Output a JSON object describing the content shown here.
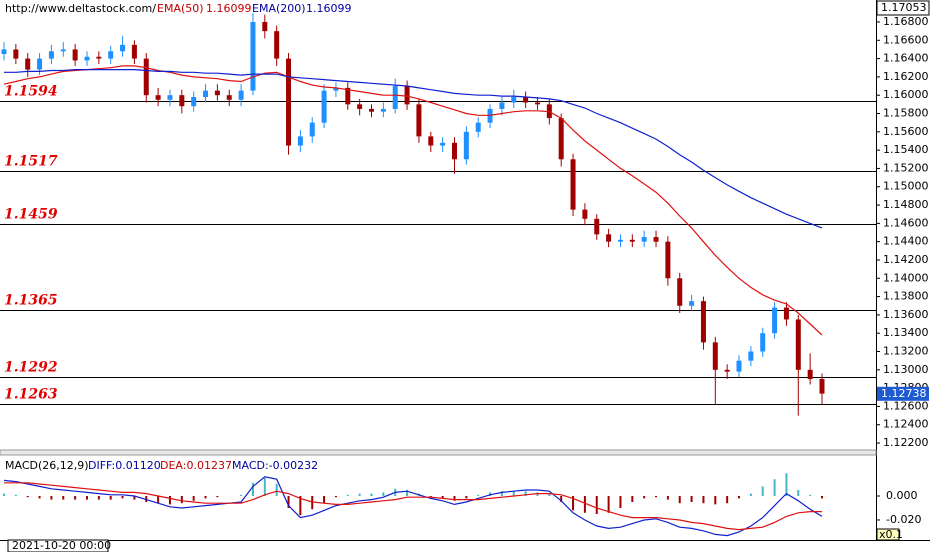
{
  "chart_data": {
    "type": "candlestick",
    "source": "http://www.deltastock.com/",
    "date_label": "2021-10-20 00:00",
    "high_price": 1.17053,
    "last_price": 1.12738,
    "ylim": [
      1.12124,
      1.1704
    ],
    "yticks": [
      {
        "value": 1.168,
        "label": "1.16800"
      },
      {
        "value": 1.166,
        "label": "1.16600"
      },
      {
        "value": 1.164,
        "label": "1.16400"
      },
      {
        "value": 1.162,
        "label": "1.16200"
      },
      {
        "value": 1.16,
        "label": "1.16000"
      },
      {
        "value": 1.158,
        "label": "1.15800"
      },
      {
        "value": 1.156,
        "label": "1.15600"
      },
      {
        "value": 1.154,
        "label": "1.15400"
      },
      {
        "value": 1.152,
        "label": "1.15200"
      },
      {
        "value": 1.15,
        "label": "1.15000"
      },
      {
        "value": 1.148,
        "label": "1.14800"
      },
      {
        "value": 1.146,
        "label": "1.14600"
      },
      {
        "value": 1.144,
        "label": "1.14400"
      },
      {
        "value": 1.142,
        "label": "1.14200"
      },
      {
        "value": 1.14,
        "label": "1.14000"
      },
      {
        "value": 1.138,
        "label": "1.13800"
      },
      {
        "value": 1.136,
        "label": "1.13600"
      },
      {
        "value": 1.134,
        "label": "1.13400"
      },
      {
        "value": 1.132,
        "label": "1.13200"
      },
      {
        "value": 1.13,
        "label": "1.13000"
      },
      {
        "value": 1.128,
        "label": "1.12800"
      },
      {
        "value": 1.126,
        "label": "1.12600"
      },
      {
        "value": 1.124,
        "label": "1.12400"
      },
      {
        "value": 1.122,
        "label": "1.12200"
      }
    ],
    "levels": [
      1.1594,
      1.1517,
      1.1459,
      1.1365,
      1.1292,
      1.1263
    ],
    "up_color": "#1e90ff",
    "down_color": "#a00000",
    "candles": [
      [
        1.1645,
        1.1658,
        1.1638,
        1.165
      ],
      [
        1.165,
        1.1656,
        1.1634,
        1.164
      ],
      [
        1.164,
        1.1646,
        1.162,
        1.1628
      ],
      [
        1.1628,
        1.1646,
        1.1622,
        1.164
      ],
      [
        1.164,
        1.1655,
        1.1634,
        1.1648
      ],
      [
        1.1648,
        1.1658,
        1.1642,
        1.165
      ],
      [
        1.165,
        1.1656,
        1.1632,
        1.1638
      ],
      [
        1.1638,
        1.1648,
        1.1632,
        1.1642
      ],
      [
        1.1642,
        1.1648,
        1.1634,
        1.164
      ],
      [
        1.164,
        1.1654,
        1.1634,
        1.1648
      ],
      [
        1.1648,
        1.1665,
        1.1642,
        1.1655
      ],
      [
        1.1655,
        1.166,
        1.1634,
        1.164
      ],
      [
        1.164,
        1.1646,
        1.1592,
        1.16
      ],
      [
        1.16,
        1.1608,
        1.1588,
        1.1595
      ],
      [
        1.1595,
        1.1606,
        1.1588,
        1.16
      ],
      [
        1.16,
        1.1606,
        1.158,
        1.1588
      ],
      [
        1.1588,
        1.1604,
        1.1582,
        1.1598
      ],
      [
        1.1598,
        1.1612,
        1.1592,
        1.1605
      ],
      [
        1.1605,
        1.1612,
        1.1594,
        1.16
      ],
      [
        1.16,
        1.1606,
        1.1588,
        1.1595
      ],
      [
        1.1595,
        1.1612,
        1.1588,
        1.1605
      ],
      [
        1.1605,
        1.169,
        1.16,
        1.168
      ],
      [
        1.168,
        1.1688,
        1.1662,
        1.167
      ],
      [
        1.167,
        1.1676,
        1.1632,
        1.164
      ],
      [
        1.164,
        1.1646,
        1.1535,
        1.1545
      ],
      [
        1.1545,
        1.1562,
        1.1538,
        1.1555
      ],
      [
        1.1555,
        1.1576,
        1.1548,
        1.157
      ],
      [
        1.157,
        1.1612,
        1.1564,
        1.1605
      ],
      [
        1.1605,
        1.1614,
        1.1598,
        1.1608
      ],
      [
        1.1608,
        1.1614,
        1.1584,
        1.159
      ],
      [
        1.159,
        1.1596,
        1.1578,
        1.1585
      ],
      [
        1.1585,
        1.159,
        1.1576,
        1.1582
      ],
      [
        1.1582,
        1.1592,
        1.1576,
        1.1585
      ],
      [
        1.1585,
        1.1618,
        1.158,
        1.161
      ],
      [
        1.161,
        1.1616,
        1.1584,
        1.159
      ],
      [
        1.159,
        1.1596,
        1.1548,
        1.1555
      ],
      [
        1.1555,
        1.156,
        1.1538,
        1.1545
      ],
      [
        1.1545,
        1.1554,
        1.1538,
        1.1548
      ],
      [
        1.1548,
        1.1554,
        1.1514,
        1.153
      ],
      [
        1.153,
        1.1566,
        1.1524,
        1.156
      ],
      [
        1.156,
        1.1576,
        1.1554,
        1.157
      ],
      [
        1.157,
        1.159,
        1.1564,
        1.1585
      ],
      [
        1.1585,
        1.1598,
        1.1578,
        1.1592
      ],
      [
        1.1592,
        1.1606,
        1.1586,
        1.1598
      ],
      [
        1.1598,
        1.1604,
        1.1586,
        1.1592
      ],
      [
        1.1592,
        1.1598,
        1.1584,
        1.159
      ],
      [
        1.159,
        1.1596,
        1.1568,
        1.1575
      ],
      [
        1.1575,
        1.158,
        1.1522,
        1.153
      ],
      [
        1.153,
        1.1536,
        1.1468,
        1.1475
      ],
      [
        1.1475,
        1.1482,
        1.1458,
        1.1465
      ],
      [
        1.1465,
        1.147,
        1.1442,
        1.1448
      ],
      [
        1.1448,
        1.1454,
        1.1434,
        1.144
      ],
      [
        1.144,
        1.1448,
        1.1434,
        1.1442
      ],
      [
        1.1442,
        1.1448,
        1.1434,
        1.144
      ],
      [
        1.144,
        1.1452,
        1.1434,
        1.1445
      ],
      [
        1.1445,
        1.1452,
        1.1434,
        1.144
      ],
      [
        1.144,
        1.1446,
        1.1392,
        1.14
      ],
      [
        1.14,
        1.1406,
        1.1362,
        1.137
      ],
      [
        1.137,
        1.1382,
        1.1364,
        1.1375
      ],
      [
        1.1375,
        1.138,
        1.1322,
        1.133
      ],
      [
        1.133,
        1.1336,
        1.1262,
        1.13
      ],
      [
        1.13,
        1.1306,
        1.129,
        1.1298
      ],
      [
        1.1298,
        1.1316,
        1.1292,
        1.131
      ],
      [
        1.131,
        1.1326,
        1.1304,
        1.132
      ],
      [
        1.132,
        1.1346,
        1.1314,
        1.134
      ],
      [
        1.134,
        1.1374,
        1.1334,
        1.1368
      ],
      [
        1.1368,
        1.1374,
        1.1348,
        1.1355
      ],
      [
        1.1355,
        1.136,
        1.125,
        1.13
      ],
      [
        1.13,
        1.1318,
        1.1284,
        1.129
      ],
      [
        1.129,
        1.1296,
        1.1262,
        1.1274
      ]
    ],
    "series": [
      {
        "name": "EMA(50)",
        "header_value": "1.16099",
        "color": "#e01010",
        "values": [
          1.1612,
          1.1615,
          1.1618,
          1.162,
          1.1623,
          1.1626,
          1.1627,
          1.1628,
          1.1629,
          1.163,
          1.1632,
          1.1632,
          1.163,
          1.1627,
          1.1625,
          1.1622,
          1.162,
          1.1619,
          1.1618,
          1.1616,
          1.1615,
          1.162,
          1.1624,
          1.1625,
          1.162,
          1.1615,
          1.1611,
          1.1609,
          1.1608,
          1.1606,
          1.1604,
          1.1602,
          1.16,
          1.16,
          1.1599,
          1.1596,
          1.1592,
          1.1588,
          1.1584,
          1.158,
          1.1578,
          1.1578,
          1.158,
          1.1582,
          1.1583,
          1.1583,
          1.1582,
          1.1575,
          1.1562,
          1.155,
          1.154,
          1.153,
          1.152,
          1.1512,
          1.1503,
          1.1494,
          1.1482,
          1.1468,
          1.1455,
          1.144,
          1.1425,
          1.1412,
          1.14,
          1.139,
          1.1382,
          1.1376,
          1.1372,
          1.1362,
          1.135,
          1.1338
        ]
      },
      {
        "name": "EMA(200)",
        "header_value": "1.16099",
        "color": "#1020d0",
        "values": [
          1.1625,
          1.1625,
          1.1626,
          1.1626,
          1.1627,
          1.1627,
          1.1628,
          1.1628,
          1.1628,
          1.1628,
          1.1628,
          1.1628,
          1.1627,
          1.1626,
          1.1626,
          1.1625,
          1.1625,
          1.1624,
          1.1624,
          1.1623,
          1.1622,
          1.1623,
          1.1623,
          1.1623,
          1.162,
          1.1619,
          1.1618,
          1.1617,
          1.1616,
          1.1615,
          1.1614,
          1.1613,
          1.1612,
          1.1611,
          1.161,
          1.1608,
          1.1606,
          1.1604,
          1.1602,
          1.1601,
          1.16,
          1.16,
          1.1599,
          1.1599,
          1.1598,
          1.1597,
          1.1596,
          1.1594,
          1.159,
          1.1586,
          1.158,
          1.1575,
          1.157,
          1.1564,
          1.1558,
          1.1552,
          1.1544,
          1.1535,
          1.1527,
          1.1518,
          1.151,
          1.1502,
          1.1495,
          1.1488,
          1.1482,
          1.1476,
          1.147,
          1.1465,
          1.146,
          1.1455
        ]
      }
    ],
    "macd": {
      "title": "MACD(26,12,9)",
      "diff_label": "DIFF:0.01120",
      "dea_label": "DEA:0.01237",
      "macd_label": "MACD:-0.00232",
      "scale_label": "x0.1",
      "ylim": [
        -0.0367,
        0.0342
      ],
      "yticks": [
        {
          "value": 0,
          "label": "0.000"
        },
        {
          "value": -0.02,
          "label": "-0.020"
        }
      ],
      "diff_color": "#1020d0",
      "dea_color": "#e01010",
      "pos_color": "#40b8c8",
      "neg_color": "#a00000",
      "diff": [
        0.013,
        0.012,
        0.01,
        0.008,
        0.006,
        0.005,
        0.004,
        0.003,
        0.002,
        0.001,
        0.001,
        0,
        -0.003,
        -0.006,
        -0.009,
        -0.01,
        -0.009,
        -0.008,
        -0.007,
        -0.006,
        -0.005,
        0.008,
        0.016,
        0.014,
        -0.008,
        -0.018,
        -0.016,
        -0.012,
        -0.008,
        -0.006,
        -0.004,
        -0.003,
        -0.001,
        0.003,
        0.004,
        0.001,
        -0.002,
        -0.004,
        -0.007,
        -0.005,
        -0.002,
        0.001,
        0.003,
        0.004,
        0.005,
        0.005,
        0.004,
        -0.004,
        -0.014,
        -0.02,
        -0.025,
        -0.027,
        -0.026,
        -0.023,
        -0.02,
        -0.019,
        -0.022,
        -0.026,
        -0.027,
        -0.029,
        -0.032,
        -0.033,
        -0.03,
        -0.025,
        -0.018,
        -0.008,
        0.002,
        -0.004,
        -0.011,
        -0.017
      ],
      "dea": [
        0.011,
        0.011,
        0.011,
        0.01,
        0.009,
        0.008,
        0.007,
        0.006,
        0.005,
        0.004,
        0.003,
        0.003,
        0.002,
        0,
        -0.002,
        -0.004,
        -0.005,
        -0.006,
        -0.006,
        -0.006,
        -0.006,
        -0.003,
        0.001,
        0.004,
        0.002,
        -0.002,
        -0.005,
        -0.006,
        -0.007,
        -0.007,
        -0.006,
        -0.005,
        -0.004,
        -0.003,
        -0.001,
        -0.001,
        -0.001,
        -0.002,
        -0.003,
        -0.003,
        -0.003,
        -0.002,
        -0.001,
        0,
        0.001,
        0.002,
        0.002,
        0.001,
        -0.002,
        -0.006,
        -0.01,
        -0.013,
        -0.016,
        -0.018,
        -0.018,
        -0.018,
        -0.019,
        -0.02,
        -0.022,
        -0.023,
        -0.025,
        -0.027,
        -0.028,
        -0.027,
        -0.026,
        -0.022,
        -0.017,
        -0.014,
        -0.013,
        -0.013
      ],
      "hist": [
        0.002,
        0.001,
        -0.001,
        -0.002,
        -0.003,
        -0.003,
        -0.003,
        -0.003,
        -0.003,
        -0.003,
        -0.002,
        -0.003,
        -0.005,
        -0.006,
        -0.007,
        -0.006,
        -0.004,
        -0.002,
        -0.001,
        0,
        0.001,
        0.011,
        0.015,
        0.01,
        -0.01,
        -0.016,
        -0.011,
        -0.006,
        -0.001,
        0.001,
        0.002,
        0.002,
        0.003,
        0.006,
        0.005,
        0.002,
        -0.001,
        -0.002,
        -0.004,
        -0.002,
        0.001,
        0.003,
        0.004,
        0.004,
        0.004,
        0.003,
        0.002,
        -0.005,
        -0.012,
        -0.014,
        -0.015,
        -0.014,
        -0.01,
        -0.005,
        -0.002,
        -0.001,
        -0.003,
        -0.006,
        -0.005,
        -0.006,
        -0.007,
        -0.006,
        -0.002,
        0.002,
        0.008,
        0.014,
        0.019,
        0.005,
        0.001,
        -0.002
      ]
    }
  }
}
